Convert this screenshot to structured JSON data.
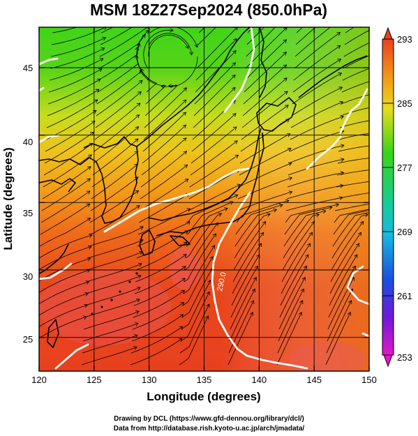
{
  "title": "MSM 18Z27Sep2024 (850.0hPa)",
  "xlabel": "Longitude (degrees)",
  "ylabel": "Latitude  (degrees)",
  "x_ticks": [
    "120",
    "125",
    "130",
    "135",
    "140",
    "145",
    "150"
  ],
  "y_ticks": [
    "25",
    "30",
    "35",
    "40",
    "45"
  ],
  "colorbar_ticks": [
    "293",
    "285",
    "277",
    "269",
    "261",
    "253"
  ],
  "contour_label": "290.0",
  "credit_line1": "Drawing by DCL (https://www.gfd-dennou.org/library/dcl/)",
  "credit_line2": "Data from http://database.rish.kyoto-u.ac.jp/arch/jmadata/",
  "colors": {
    "warm": "#e8401c",
    "mid_orange": "#f07818",
    "yellow": "#e6d81c",
    "green": "#38d418",
    "cyan": "#18c8d8",
    "blue": "#1838d8",
    "magenta": "#e018c8",
    "contour": "#ffffff",
    "streamline": "#000000"
  },
  "chart_data": {
    "type": "heatmap",
    "variable": "temperature (K), 850.0 hPa, with streamlines",
    "xlim": [
      120,
      150
    ],
    "ylim": [
      22.5,
      48
    ],
    "clim": [
      253,
      293
    ],
    "contour_levels": [
      290.0
    ],
    "colorbar_ticks": [
      293,
      285,
      277,
      269,
      261,
      253
    ]
  }
}
